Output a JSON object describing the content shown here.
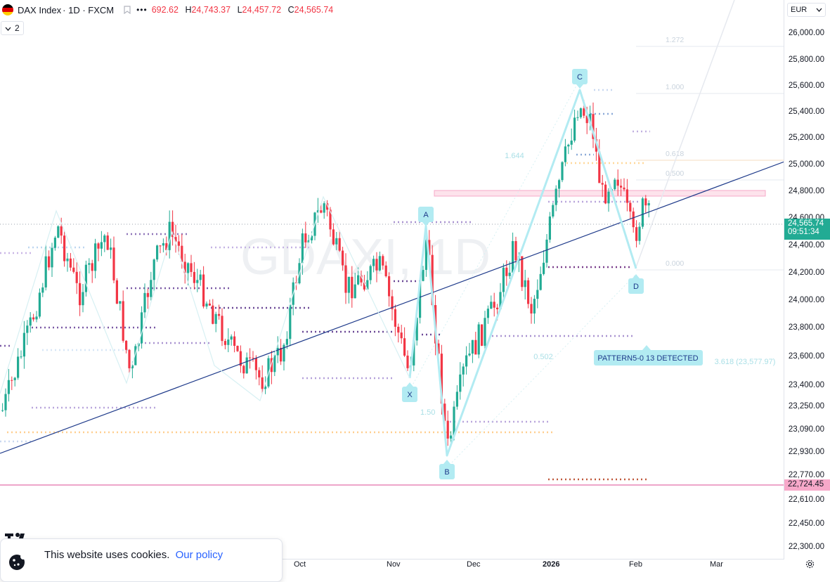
{
  "header": {
    "symbol": "DAX Index",
    "interval_source": "· 1D · FXCM",
    "more": "•••",
    "ohlc": [
      {
        "k": "",
        "v": "692.62"
      },
      {
        "k": "H",
        "v": "24,743.37"
      },
      {
        "k": "L",
        "v": "24,457.72"
      },
      {
        "k": "C",
        "v": "24,565.74"
      }
    ],
    "flag_colors": [
      "#000000",
      "#dd0000",
      "#ffce00"
    ]
  },
  "indicator_toggle": {
    "icon": "chevron-down-icon",
    "count": "2"
  },
  "price_axis": {
    "currency": "EUR",
    "ticks": [
      "26,000.00",
      "25,800.00",
      "25,600.00",
      "25,400.00",
      "25,200.00",
      "25,000.00",
      "24,800.00",
      "24,600.00",
      "24,400.00",
      "24,200.00",
      "24,000.00",
      "23,800.00",
      "23,600.00",
      "23,400.00",
      "23,250.00",
      "23,090.00",
      "22,930.00",
      "22,770.00",
      "22,610.00",
      "22,450.00",
      "22,300.00"
    ],
    "last_price": "24,565.74",
    "countdown": "09:51:34",
    "level_label": "22,724.45",
    "last_color": "#22ab94",
    "level_color": "#f7a8c9"
  },
  "time_axis": {
    "ticks": [
      {
        "label": "Oct",
        "bold": false
      },
      {
        "label": "Nov",
        "bold": false
      },
      {
        "label": "Dec",
        "bold": false
      },
      {
        "label": "2026",
        "bold": true
      },
      {
        "label": "Feb",
        "bold": false
      },
      {
        "label": "Mar",
        "bold": false
      }
    ]
  },
  "pattern": {
    "points": [
      "X",
      "A",
      "B",
      "C",
      "D"
    ],
    "ratios": [
      "1.644",
      "0.502",
      "1.50"
    ],
    "fib_levels": [
      "1.272",
      "1.000",
      "0.618",
      "0.500",
      "0.000"
    ],
    "extension": "3.618 (23,577.97)",
    "banner": "PATTERN5-0 13 DETECTED",
    "color": "#b2ebf2"
  },
  "colors": {
    "up": "#22ab94",
    "down": "#f23645",
    "trendline": "#1e3a8a"
  },
  "cookie_banner": {
    "text": "This website uses cookies.",
    "link": "Our policy"
  },
  "watermark_logo": "TradingView"
}
